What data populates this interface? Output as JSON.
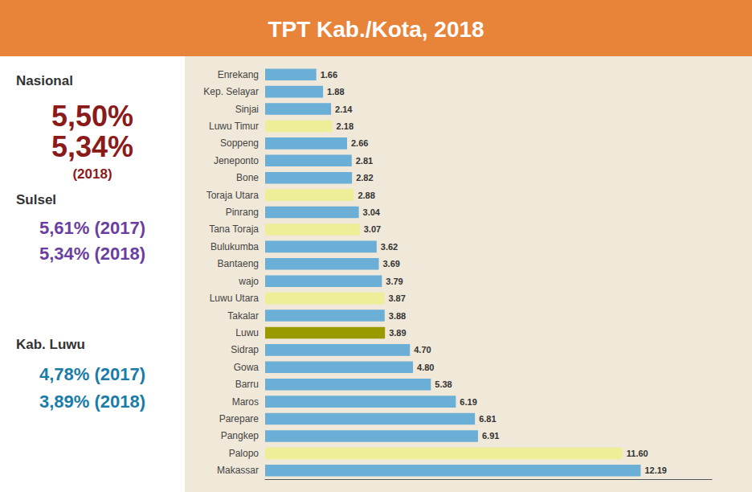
{
  "chart_data": {
    "type": "bar",
    "orientation": "horizontal",
    "title": "TPT Kab./Kota, 2018",
    "categories": [
      "Enrekang",
      "Kep. Selayar",
      "Sinjai",
      "Luwu Timur",
      "Soppeng",
      "Jeneponto",
      "Bone",
      "Toraja Utara",
      "Pinrang",
      "Tana Toraja",
      "Bulukumba",
      "Bantaeng",
      "wajo",
      "Luwu Utara",
      "Takalar",
      "Luwu",
      "Sidrap",
      "Gowa",
      "Barru",
      "Maros",
      "Parepare",
      "Pangkep",
      "Palopo",
      "Makassar"
    ],
    "values": [
      1.66,
      1.88,
      2.14,
      2.18,
      2.66,
      2.81,
      2.82,
      2.88,
      3.04,
      3.07,
      3.62,
      3.69,
      3.79,
      3.87,
      3.88,
      3.89,
      4.7,
      4.8,
      5.38,
      6.19,
      6.81,
      6.91,
      11.6,
      12.19
    ],
    "value_labels": [
      "1.66",
      "1.88",
      "2.14",
      "2.18",
      "2.66",
      "2.81",
      "2.82",
      "2.88",
      "3.04",
      "3.07",
      "3.62",
      "3.69",
      "3.79",
      "3.87",
      "3.88",
      "3.89",
      "4.70",
      "4.80",
      "5.38",
      "6.19",
      "6.81",
      "6.91",
      "11.60",
      "12.19"
    ],
    "colors": [
      "#6BAED6",
      "#6BAED6",
      "#6BAED6",
      "#EEEE99",
      "#6BAED6",
      "#6BAED6",
      "#6BAED6",
      "#EEEE99",
      "#6BAED6",
      "#EEEE99",
      "#6BAED6",
      "#6BAED6",
      "#6BAED6",
      "#EEEE99",
      "#6BAED6",
      "#9A9A00",
      "#6BAED6",
      "#6BAED6",
      "#6BAED6",
      "#6BAED6",
      "#6BAED6",
      "#6BAED6",
      "#EEEE99",
      "#6BAED6"
    ],
    "data_labels": true,
    "xlim": [
      0,
      14.5
    ],
    "tick_labels": "y",
    "grid": false,
    "annotations": [
      {
        "text": "Nasional",
        "color": "#333333"
      },
      {
        "text": "5,50%",
        "color": "#8B1A1A"
      },
      {
        "text": "5,34%",
        "color": "#8B1A1A"
      },
      {
        "text": "(2018)",
        "color": "#8B1A1A"
      },
      {
        "text": "Sulsel",
        "color": "#333333"
      },
      {
        "text": "5,61% (2017)",
        "color": "#6B3FA0"
      },
      {
        "text": "5,34% (2018)",
        "color": "#6B3FA0"
      },
      {
        "text": "Kab. Luwu",
        "color": "#333333"
      },
      {
        "text": "4,78% (2017)",
        "color": "#1B7CA8"
      },
      {
        "text": "3,89% (2018)",
        "color": "#1B7CA8"
      }
    ]
  }
}
